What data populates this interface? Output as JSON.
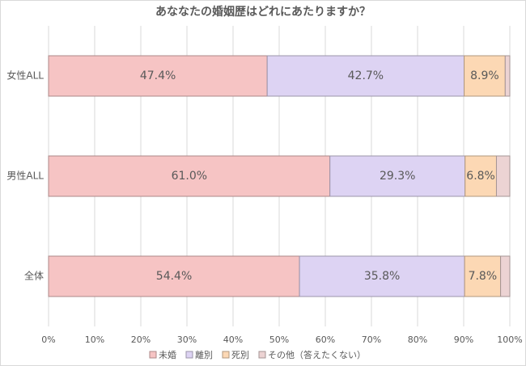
{
  "chart_data": {
    "type": "stacked-bar-horizontal",
    "title": "あななたの婚姻歴はどれにあたりますか？",
    "categories": [
      "女性ALL",
      "男性ALL",
      "全体"
    ],
    "series": [
      {
        "name": "未婚",
        "color": "#f6c4c4",
        "values": [
          47.4,
          61.0,
          54.4
        ],
        "value_labels": [
          "47.4%",
          "61.0%",
          "54.4%"
        ]
      },
      {
        "name": "離別",
        "color": "#ddd3f3",
        "values": [
          42.7,
          29.3,
          35.8
        ],
        "value_labels": [
          "42.7%",
          "29.3%",
          "35.8%"
        ]
      },
      {
        "name": "死別",
        "color": "#fcd8b4",
        "values": [
          8.9,
          6.8,
          7.8
        ],
        "value_labels": [
          "8.9%",
          "6.8%",
          "7.8%"
        ]
      },
      {
        "name": "その他（答えたくない）",
        "color": "#ecd3d3",
        "values": [
          1.0,
          2.9,
          2.0
        ]
      }
    ],
    "xlim": [
      0,
      100
    ],
    "xticks": [
      {
        "value": 0,
        "label": "0%"
      },
      {
        "value": 10,
        "label": "10%"
      },
      {
        "value": 20,
        "label": "20%"
      },
      {
        "value": 30,
        "label": "30%"
      },
      {
        "value": 40,
        "label": "40%"
      },
      {
        "value": 50,
        "label": "50%"
      },
      {
        "value": 60,
        "label": "60%"
      },
      {
        "value": 70,
        "label": "70%"
      },
      {
        "value": 80,
        "label": "80%"
      },
      {
        "value": 90,
        "label": "90%"
      },
      {
        "value": 100,
        "label": "100%"
      }
    ],
    "grid": true,
    "legend": "bottom"
  }
}
